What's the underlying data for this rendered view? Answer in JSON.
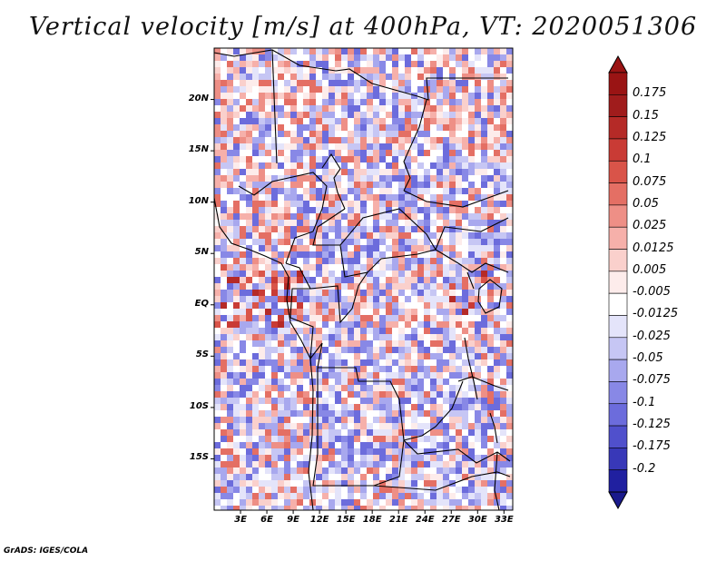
{
  "title": "Vertical velocity [m/s] at 400hPa, VT: 2020051306",
  "credit": "GrADS: IGES/COLA",
  "map": {
    "region": "Central Africa",
    "variable": "Vertical velocity",
    "units": "m/s",
    "level": "400hPa",
    "valid_time": "2020051306",
    "lon_range": [
      0,
      34
    ],
    "lat_range": [
      -20,
      25
    ],
    "lat_ticks": [
      {
        "value": 20,
        "label": "20N"
      },
      {
        "value": 15,
        "label": "15N"
      },
      {
        "value": 10,
        "label": "10N"
      },
      {
        "value": 5,
        "label": "5N"
      },
      {
        "value": 0,
        "label": "EQ"
      },
      {
        "value": -5,
        "label": "5S"
      },
      {
        "value": -10,
        "label": "10S"
      },
      {
        "value": -15,
        "label": "15S"
      }
    ],
    "lon_ticks": [
      {
        "value": 3,
        "label": "3E"
      },
      {
        "value": 6,
        "label": "6E"
      },
      {
        "value": 9,
        "label": "9E"
      },
      {
        "value": 12,
        "label": "12E"
      },
      {
        "value": 15,
        "label": "15E"
      },
      {
        "value": 18,
        "label": "18E"
      },
      {
        "value": 21,
        "label": "21E"
      },
      {
        "value": 24,
        "label": "24E"
      },
      {
        "value": 27,
        "label": "27E"
      },
      {
        "value": 30,
        "label": "30E"
      },
      {
        "value": 33,
        "label": "33E"
      }
    ]
  },
  "colorbar": {
    "levels": [
      {
        "label": "0.175",
        "color": "#a01c1c"
      },
      {
        "label": "0.15",
        "color": "#b52a27"
      },
      {
        "label": "0.125",
        "color": "#c93b35"
      },
      {
        "label": "0.1",
        "color": "#d95449"
      },
      {
        "label": "0.075",
        "color": "#e46f64"
      },
      {
        "label": "0.05",
        "color": "#ee8f86"
      },
      {
        "label": "0.025",
        "color": "#f6b0aa"
      },
      {
        "label": "0.0125",
        "color": "#fad0cc"
      },
      {
        "label": "0.005",
        "color": "#fdeceb"
      },
      {
        "label": "-0.005",
        "color": "#ffffff"
      },
      {
        "label": "-0.0125",
        "color": "#e4e4fa"
      },
      {
        "label": "-0.025",
        "color": "#c6c6f4"
      },
      {
        "label": "-0.05",
        "color": "#a8a8ee"
      },
      {
        "label": "-0.075",
        "color": "#8888e6"
      },
      {
        "label": "-0.1",
        "color": "#6c6cdc"
      },
      {
        "label": "-0.125",
        "color": "#5050cc"
      },
      {
        "label": "-0.175",
        "color": "#3838b8"
      },
      {
        "label": "-0.2",
        "color": "#2020a0"
      }
    ],
    "top_color": "#9a1414",
    "bottom_color": "#1a1a8c"
  }
}
